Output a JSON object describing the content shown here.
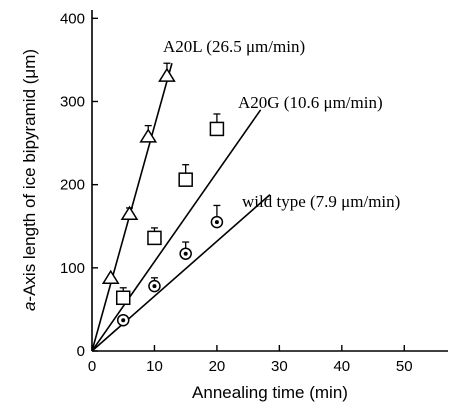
{
  "chart_data": {
    "type": "scatter",
    "title": "",
    "xlabel": "Annealing time (min)",
    "ylabel_italic": "a",
    "ylabel_rest": "-Axis length of ice bipyramid (μm)",
    "xlim": [
      0,
      57
    ],
    "ylim": [
      0,
      410
    ],
    "xticks": [
      0,
      10,
      20,
      30,
      40,
      50
    ],
    "yticks": [
      0,
      100,
      200,
      300,
      400
    ],
    "grid": false,
    "series": [
      {
        "name": "A20L (26.5 μm/min)",
        "marker": "triangle",
        "x": [
          3,
          6,
          9,
          12
        ],
        "y": [
          87,
          164,
          257,
          330
        ],
        "err": [
          0,
          8,
          14,
          16
        ],
        "fit_end": [
          12.8,
          346
        ]
      },
      {
        "name": "A20G (10.6 μm/min)",
        "marker": "square",
        "x": [
          5,
          10,
          15,
          20
        ],
        "y": [
          64,
          136,
          206,
          267
        ],
        "err": [
          12,
          12,
          18,
          18
        ],
        "fit_end": [
          27,
          290
        ]
      },
      {
        "name": "wild type (7.9 μm/min)",
        "marker": "circle-dot",
        "x": [
          5,
          10,
          15,
          20
        ],
        "y": [
          37,
          78,
          117,
          155
        ],
        "err": [
          0,
          10,
          14,
          20
        ],
        "fit_end": [
          28.5,
          188
        ]
      }
    ]
  }
}
